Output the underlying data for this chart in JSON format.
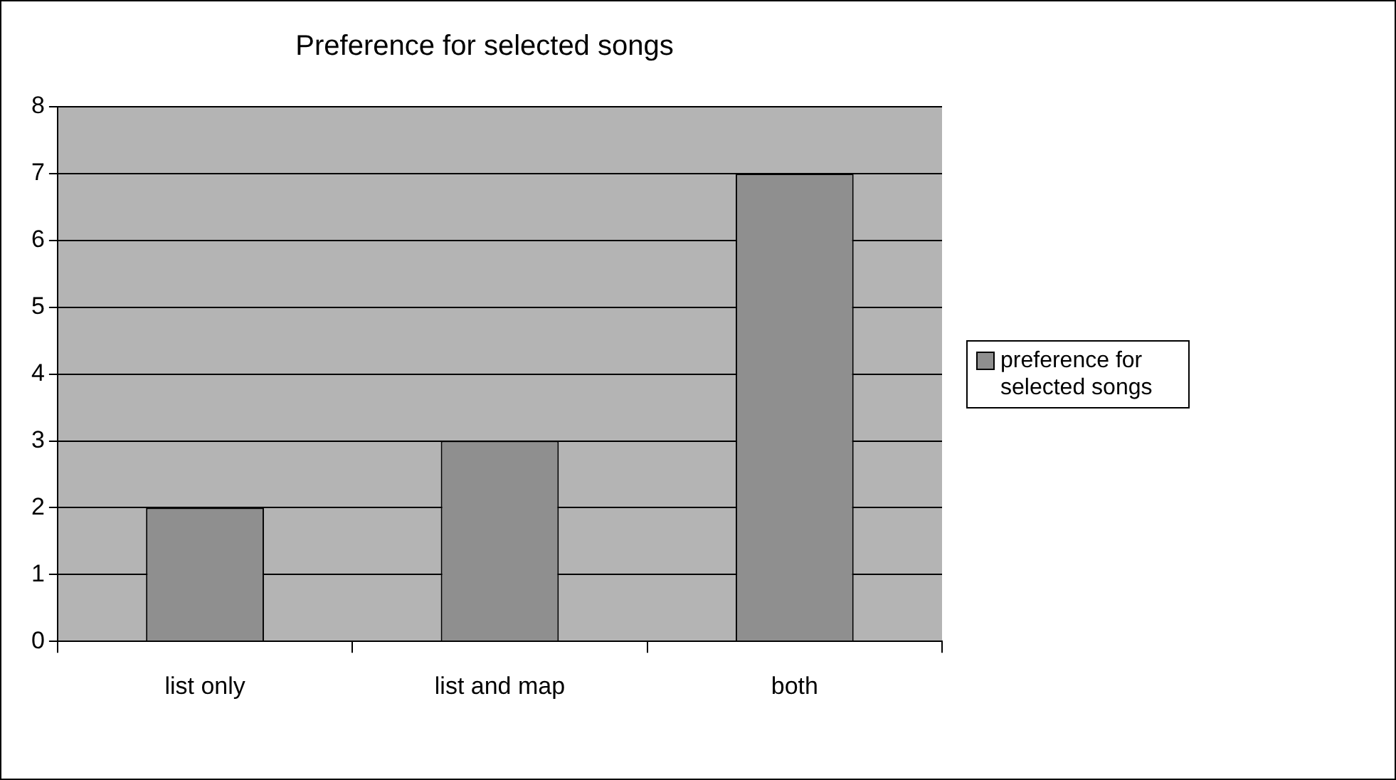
{
  "chart_data": {
    "type": "bar",
    "title": "Preference for selected songs",
    "categories": [
      "list only",
      "list and map",
      "both"
    ],
    "series": [
      {
        "name": "preference for selected songs",
        "color": "#8f8f8f",
        "values": [
          2,
          3,
          7
        ]
      }
    ],
    "ylim": [
      0,
      8
    ],
    "yticks": [
      0,
      1,
      2,
      3,
      4,
      5,
      6,
      7,
      8
    ],
    "grid": "y",
    "legend": "right"
  }
}
